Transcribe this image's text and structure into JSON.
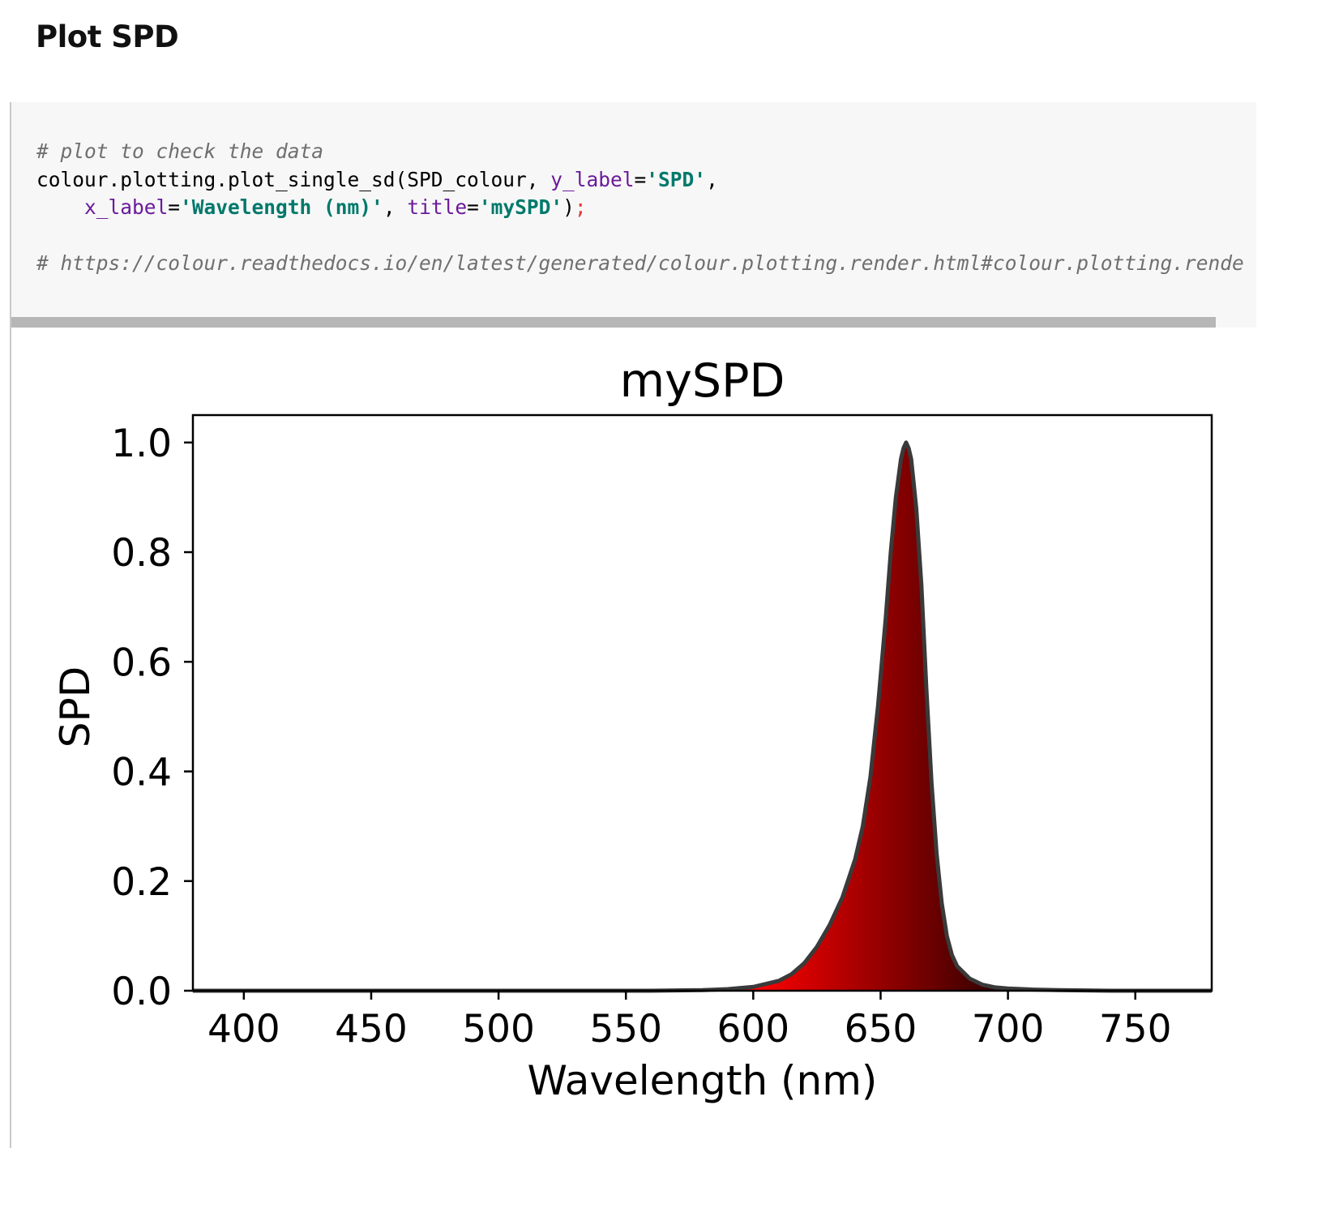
{
  "section": {
    "title": "Plot SPD"
  },
  "code_cell": {
    "lines": [
      [
        {
          "cls": "c-comment",
          "text": "# plot to check the data"
        }
      ],
      [
        {
          "cls": "c-punct",
          "text": "colour.plotting.plot_single_sd(SPD_colour, "
        },
        {
          "cls": "c-kw",
          "text": "y_label"
        },
        {
          "cls": "c-punct",
          "text": "="
        },
        {
          "cls": "c-str",
          "text": "'SPD'"
        },
        {
          "cls": "c-punct",
          "text": ","
        }
      ],
      [
        {
          "cls": "c-punct",
          "text": "    "
        },
        {
          "cls": "c-kw",
          "text": "x_label"
        },
        {
          "cls": "c-punct",
          "text": "="
        },
        {
          "cls": "c-str",
          "text": "'Wavelength (nm)'"
        },
        {
          "cls": "c-punct",
          "text": ", "
        },
        {
          "cls": "c-kw",
          "text": "title"
        },
        {
          "cls": "c-punct",
          "text": "="
        },
        {
          "cls": "c-str",
          "text": "'mySPD'"
        },
        {
          "cls": "c-punct",
          "text": ")"
        },
        {
          "cls": "c-semi",
          "text": ";"
        }
      ],
      [],
      [
        {
          "cls": "c-comment",
          "text": "# https://colour.readthedocs.io/en/latest/generated/colour.plotting.render.html#colour.plotting.rende"
        }
      ]
    ]
  },
  "colors": {
    "code_background": "#f7f7f7",
    "scrollbar": "#b6b6b6",
    "curve_outline": "#3a3a3a",
    "fill_left": "#ff0000",
    "fill_right": "#2a0000"
  },
  "chart_data": {
    "type": "area",
    "title": "mySPD",
    "xlabel": "Wavelength (nm)",
    "ylabel": "SPD",
    "xlim": [
      380,
      780
    ],
    "ylim": [
      0.0,
      1.05
    ],
    "xticks": [
      400,
      450,
      500,
      550,
      600,
      650,
      700,
      750
    ],
    "xtick_labels": [
      "400",
      "450",
      "500",
      "550",
      "600",
      "650",
      "700",
      "750"
    ],
    "yticks": [
      0.0,
      0.2,
      0.4,
      0.6,
      0.8,
      1.0
    ],
    "ytick_labels": [
      "0.0",
      "0.2",
      "0.4",
      "0.6",
      "0.8",
      "1.0"
    ],
    "grid": false,
    "legend": false,
    "series": [
      {
        "x": [
          380,
          560,
          580,
          590,
          600,
          610,
          615,
          620,
          625,
          630,
          635,
          640,
          643,
          646,
          649,
          652,
          654,
          656,
          658,
          659,
          660,
          661,
          662,
          664,
          666,
          668,
          670,
          672,
          674,
          676,
          678,
          680,
          685,
          690,
          695,
          700,
          710,
          720,
          740,
          780
        ],
        "y": [
          0.0,
          0.0,
          0.001,
          0.003,
          0.007,
          0.018,
          0.03,
          0.05,
          0.08,
          0.12,
          0.17,
          0.24,
          0.3,
          0.39,
          0.52,
          0.68,
          0.8,
          0.9,
          0.97,
          0.99,
          1.0,
          0.99,
          0.97,
          0.88,
          0.74,
          0.55,
          0.38,
          0.25,
          0.16,
          0.1,
          0.065,
          0.045,
          0.022,
          0.011,
          0.006,
          0.004,
          0.002,
          0.001,
          0.0,
          0.0
        ]
      }
    ]
  }
}
